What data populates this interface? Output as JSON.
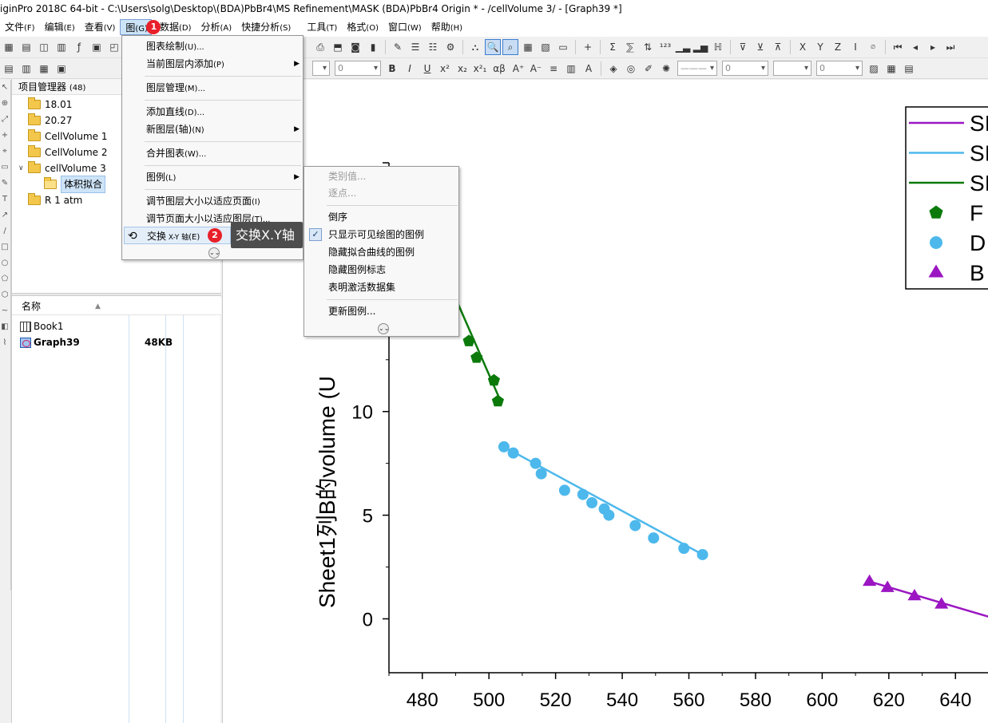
{
  "window": {
    "title": "iginPro 2018C 64-bit - C:\\Users\\solg\\Desktop\\(BDA)PbBr4\\MS Refinement\\MASK (BDA)PbBr4 Origin * - /cellVolume 3/ - [Graph39 *]"
  },
  "menubar": {
    "file": "文件",
    "file_acc": "(F)",
    "edit": "编辑",
    "edit_acc": "(E)",
    "view": "查看",
    "view_acc": "(V)",
    "graph": "图",
    "graph_acc": "(G)",
    "data": "数据",
    "data_acc": "(D)",
    "analysis": "分析",
    "analysis_acc": "(A)",
    "quick": "快捷分析",
    "quick_acc": "(S)",
    "tools": "工具",
    "tools_acc": "(T)",
    "format": "格式",
    "format_acc": "(O)",
    "window": "窗口",
    "window_acc": "(W)",
    "help": "帮助",
    "help_acc": "(H)"
  },
  "badges": {
    "step1": "1",
    "step2": "2"
  },
  "toolbar2": {
    "font_combo": "",
    "size_combo": "0",
    "line_width_combo": "0",
    "pattern_combo": "0",
    "greek": "αβ",
    "pattern_value": "0"
  },
  "project_explorer": {
    "title": "项目管理器",
    "count": "(48)",
    "folders": [
      {
        "label": "18.01"
      },
      {
        "label": "20.27"
      },
      {
        "label": "CellVolume 1"
      },
      {
        "label": "CellVolume 2"
      },
      {
        "label": "cellVolume 3"
      },
      {
        "label": "体积拟合"
      },
      {
        "label": "R 1 atm"
      }
    ],
    "list_header_name": "名称",
    "files": [
      {
        "name": "Book1",
        "size": ""
      },
      {
        "name": "Graph39",
        "size": "48KB"
      }
    ]
  },
  "graph_menu": {
    "items": {
      "plot": "图表绘制",
      "plot_acc": "(U)...",
      "add_to_layer": "当前图层内添加",
      "add_to_layer_acc": "(P)",
      "layer_mgmt": "图层管理",
      "layer_mgmt_acc": "(M)...",
      "add_line": "添加直线",
      "add_line_acc": "(D)...",
      "new_layer": "新图层(轴)",
      "new_layer_acc": "(N)",
      "merge": "合并图表",
      "merge_acc": "(W)...",
      "legend": "图例",
      "legend_acc": "(L)",
      "fit_layer": "调节图层大小以适应页面",
      "fit_layer_acc": "(I)",
      "fit_page": "调节页面大小以适应图层",
      "fit_page_acc": "(T)...",
      "swap_xy": "交换",
      "swap_xy_small": " X-Y 轴",
      "swap_xy_acc": "(E)"
    }
  },
  "legend_submenu": {
    "items": {
      "category": "类别值...",
      "per_point": "逐点...",
      "reverse": "倒序",
      "visible_only": "只显示可见绘图的图例",
      "hide_fit": "隐藏拟合曲线的图例",
      "hide_marker": "隐藏图例标志",
      "mark_active": "表明激活数据集",
      "update": "更新图例..."
    }
  },
  "tooltip": {
    "text": "交换X.Y轴"
  },
  "colors": {
    "purple": "#9b16c2",
    "blue": "#4db8ec",
    "green": "#0b7a0b",
    "menu_highlight": "#cce4f7",
    "badge": "#e8202a"
  },
  "chart_data": {
    "type": "scatter",
    "ylabel": "Sheet1列B的volume (U",
    "xlim": [
      470,
      650
    ],
    "ylim": [
      -2.6,
      22
    ],
    "x_ticks": [
      480,
      500,
      520,
      540,
      560,
      580,
      600,
      620,
      640
    ],
    "y_ticks": [
      0,
      5,
      10
    ],
    "legend_entries": [
      "SI",
      "SI",
      "SI",
      "F",
      "D",
      "B"
    ],
    "series": [
      {
        "name": "F",
        "color": "green",
        "marker": "pentagon",
        "x": [
          494,
          496.3,
          501.5,
          502.7
        ],
        "y": [
          13.4,
          12.6,
          11.5,
          10.5
        ]
      },
      {
        "name": "D",
        "color": "blue",
        "marker": "circle",
        "x": [
          504.5,
          507.3,
          514,
          515.7,
          522.7,
          528.2,
          530.9,
          534.6,
          536,
          543.9,
          549.4,
          558.5,
          564.1
        ],
        "y": [
          8.3,
          8.0,
          7.5,
          7.0,
          6.2,
          6.0,
          5.6,
          5.3,
          5.0,
          4.5,
          3.9,
          3.4,
          3.1
        ]
      },
      {
        "name": "B",
        "color": "purple",
        "marker": "triangle",
        "x": [
          614.2,
          619.6,
          627.7,
          635.8
        ],
        "y": [
          1.8,
          1.5,
          1.1,
          0.7
        ]
      }
    ],
    "fit_lines": [
      {
        "color": "green",
        "x": [
          488,
          503.5
        ],
        "y": [
          16.2,
          10.5
        ]
      },
      {
        "color": "blue",
        "x": [
          504.5,
          564.1
        ],
        "y": [
          8.3,
          3.1
        ]
      },
      {
        "color": "purple",
        "x": [
          614.2,
          650
        ],
        "y": [
          1.8,
          0.1
        ]
      }
    ]
  }
}
